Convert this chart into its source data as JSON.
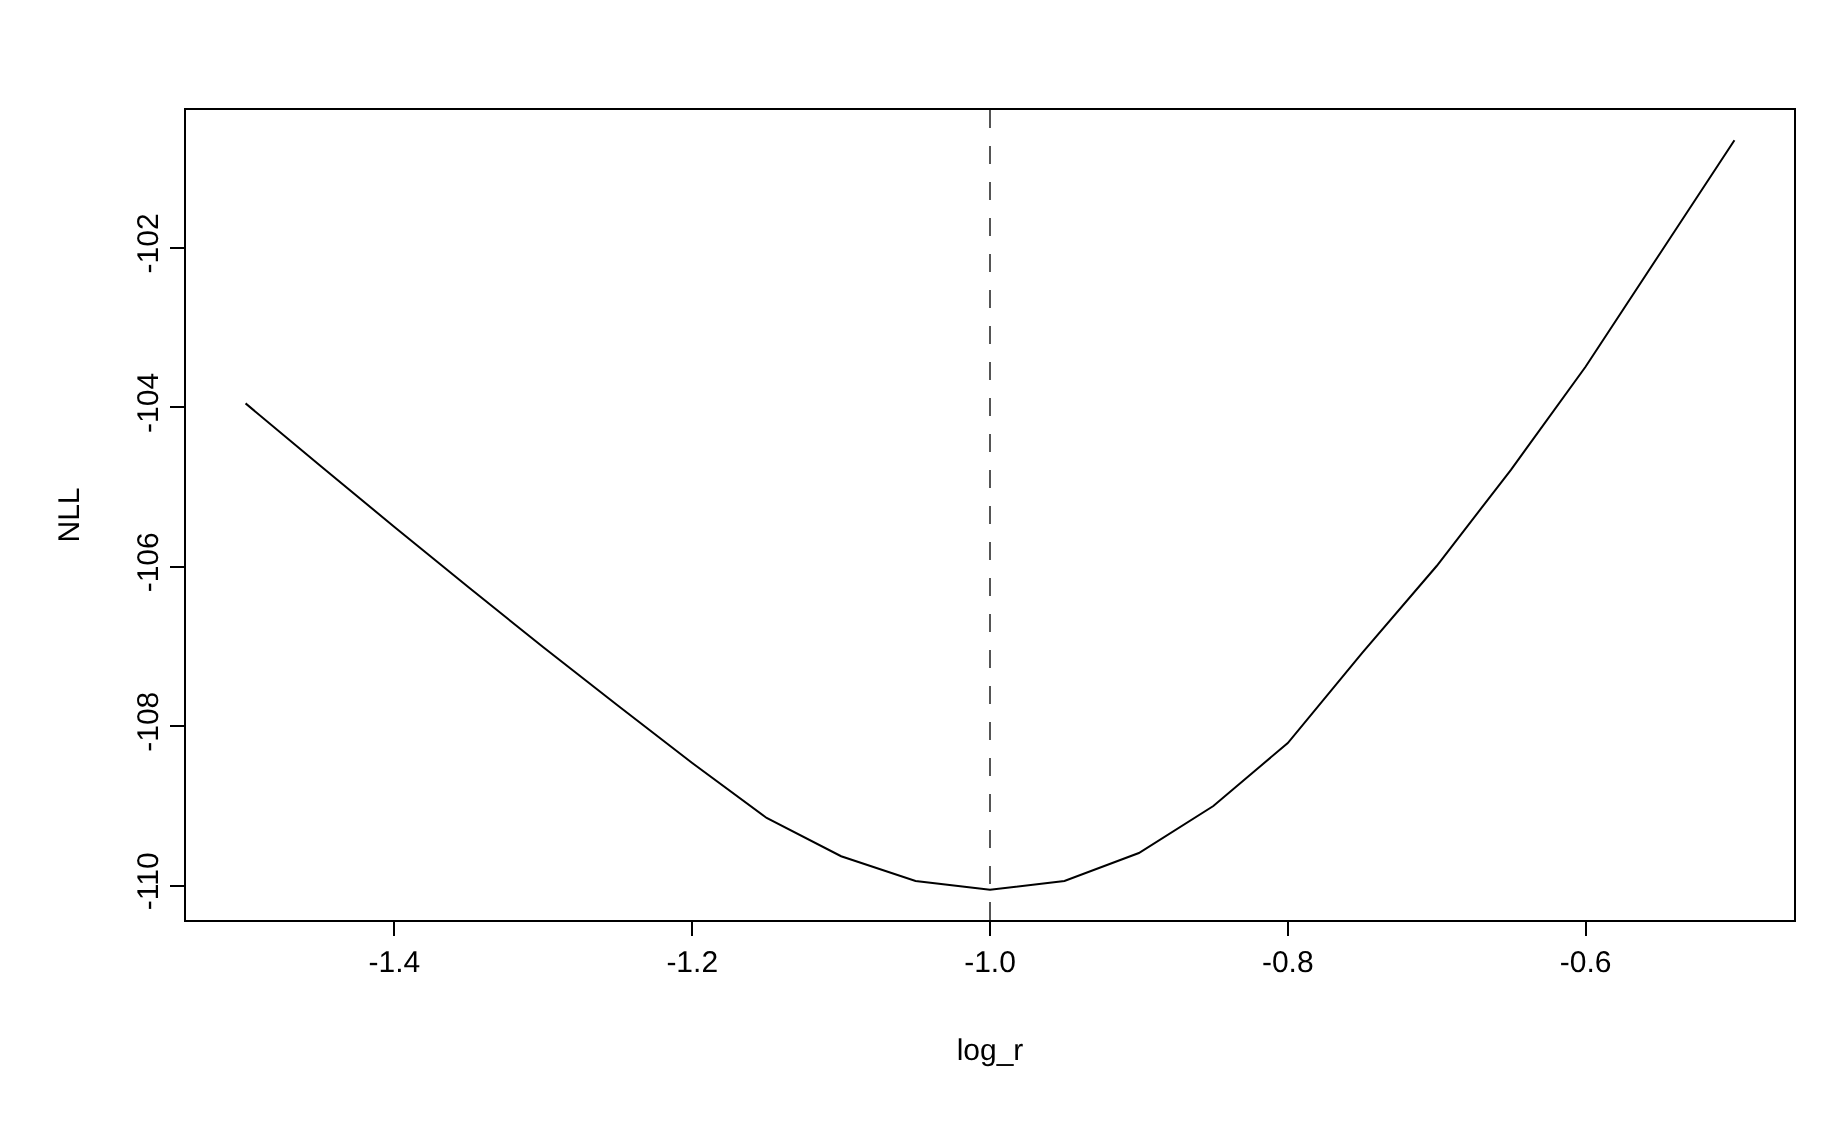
{
  "chart_data": {
    "type": "line",
    "xlabel": "log_r",
    "ylabel": "NLL",
    "x": [
      -1.5,
      -1.45,
      -1.4,
      -1.35,
      -1.3,
      -1.25,
      -1.2,
      -1.15,
      -1.1,
      -1.05,
      -1.0,
      -0.95,
      -0.9,
      -0.85,
      -0.8,
      -0.75,
      -0.7,
      -0.65,
      -0.6,
      -0.55,
      -0.5
    ],
    "series": [
      {
        "color": "#000000",
        "values": [
          -103.95,
          -104.73,
          -105.5,
          -106.26,
          -107.01,
          -107.74,
          -108.46,
          -109.15,
          -109.63,
          -109.94,
          -110.05,
          -109.94,
          -109.59,
          -109.0,
          -108.21,
          -107.08,
          -105.99,
          -104.78,
          -103.49,
          -102.07,
          -100.65
        ]
      }
    ],
    "xlim": [
      -1.54,
      -0.46
    ],
    "ylim": [
      -110.43,
      -100.27
    ],
    "xticks": [
      -1.4,
      -1.2,
      {
        "value": -1.0,
        "label": "-1.0"
      },
      -0.8,
      -0.6
    ],
    "yticks": [
      -110,
      -108,
      -106,
      -104,
      -102
    ],
    "ref_lines": [
      {
        "axis": "x",
        "value": -1.0,
        "color": "#555555",
        "line_style": "dashed"
      }
    ],
    "marker": "none",
    "line_style": "solid"
  }
}
